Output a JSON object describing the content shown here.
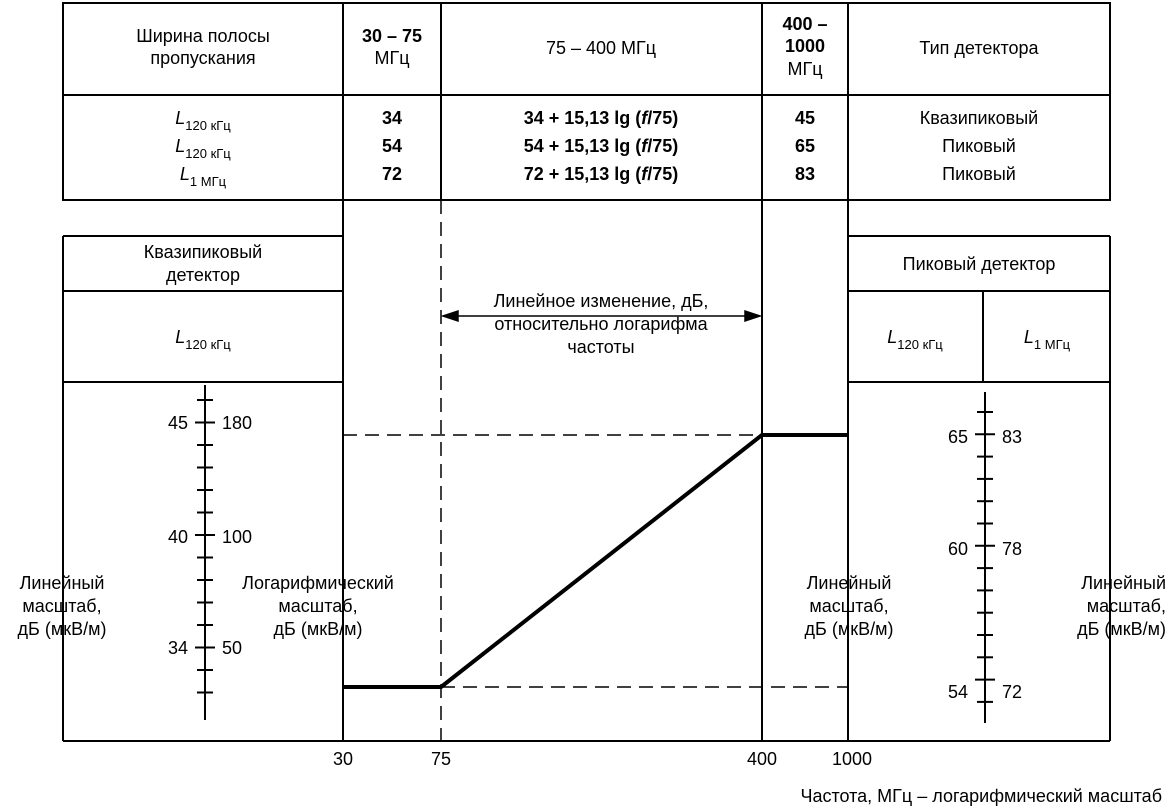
{
  "header": {
    "bandwidth": [
      "Ширина полосы",
      "пропускания"
    ],
    "range1": [
      "30 – 75",
      "МГц"
    ],
    "range2": "75 – 400 МГц",
    "range3": [
      "400 –",
      "1000",
      "МГц"
    ],
    "detector_type": "Тип детектора"
  },
  "rows": [
    {
      "sym": "L",
      "sub": "120 кГц",
      "v1": "34",
      "formula_a": "34 + 15,13 lg (",
      "formula_f": "f",
      "formula_b": "/75)",
      "v3": "45",
      "detector": "Квазипиковый"
    },
    {
      "sym": "L",
      "sub": "120 кГц",
      "v1": "54",
      "formula_a": "54 + 15,13 lg (",
      "formula_f": "f",
      "formula_b": "/75)",
      "v3": "65",
      "detector": "Пиковый"
    },
    {
      "sym": "L",
      "sub": "1 МГц",
      "v1": "72",
      "formula_a": "72 + 15,13 lg (",
      "formula_f": "f",
      "formula_b": "/75)",
      "v3": "83",
      "detector": "Пиковый"
    }
  ],
  "left_panel": {
    "title": [
      "Квазипиковый",
      "детектор"
    ],
    "sym": "L",
    "sub": "120 кГц"
  },
  "right_panel": {
    "title": "Пиковый детектор",
    "col1_sym": "L",
    "col1_sub": "120 кГц",
    "col2_sym": "L",
    "col2_sub": "1 МГц"
  },
  "center_note": [
    "Линейное изменение, дБ,",
    "относительно логарифма",
    "частоты"
  ],
  "left_scale": {
    "ticks": [
      {
        "db": "45",
        "uv": "180"
      },
      {
        "db": "40",
        "uv": "100"
      },
      {
        "db": "34",
        "uv": "50"
      }
    ]
  },
  "right_scale": {
    "ticks": [
      {
        "db": "65",
        "uv": "83"
      },
      {
        "db": "60",
        "uv": "78"
      },
      {
        "db": "54",
        "uv": "72"
      }
    ]
  },
  "labels": {
    "linear_outer": [
      "Линейный",
      "масштаб,",
      "дБ (мкВ/м)"
    ],
    "log_scale": [
      "Логарифмический",
      "масштаб,",
      "дБ (мкВ/м)"
    ],
    "linear_inner": [
      "Линейный",
      "масштаб,",
      "дБ (мкВ/м)"
    ],
    "linear_right": [
      "Линейный",
      "масштаб,",
      "дБ (мкВ/м)"
    ]
  },
  "freq_axis": {
    "ticks": [
      "30",
      "75",
      "400",
      "1000"
    ],
    "title": "Частота, МГц – логарифмический масштаб"
  },
  "chart_data": {
    "type": "line",
    "x": [
      30,
      75,
      400,
      1000
    ],
    "y": [
      34,
      34,
      45,
      45
    ],
    "xlabel": "Частота, МГц – логарифмический масштаб",
    "ylabel": "дБ (мкВ/м)",
    "xscale": "log"
  }
}
